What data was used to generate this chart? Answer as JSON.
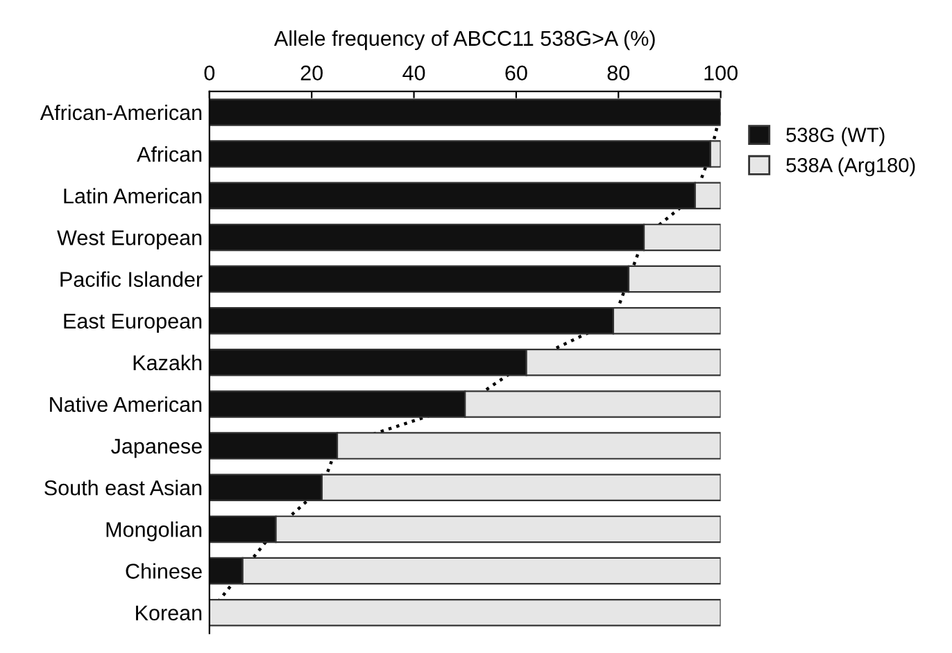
{
  "chart_data": {
    "type": "bar",
    "orientation": "horizontal",
    "stacked": true,
    "xlabel": "Allele frequency of ABCC11 538G>A (%)",
    "categories": [
      "African-American",
      "African",
      "Latin American",
      "West European",
      "Pacific Islander",
      "East European",
      "Kazakh",
      "Native American",
      "Japanese",
      "South east Asian",
      "Mongolian",
      "Chinese",
      "Korean"
    ],
    "series": [
      {
        "name": "538G (WT)",
        "color": "#111111",
        "values": [
          100,
          98,
          95,
          85,
          82,
          79,
          62,
          50,
          25,
          22,
          13,
          6.5,
          0
        ]
      },
      {
        "name": "538A (Arg180)",
        "color": "#e6e6e6",
        "values": [
          0,
          2,
          5,
          15,
          18,
          21,
          38,
          50,
          75,
          78,
          87,
          93.5,
          100
        ]
      },
      {
        "type": "line",
        "color": "#000000",
        "line_style": "dotted",
        "values": [
          100,
          98,
          95,
          85,
          82,
          79,
          62,
          50,
          25,
          22,
          13,
          6.5,
          0
        ]
      }
    ],
    "xlim": [
      0,
      100
    ],
    "xticks": [
      0,
      20,
      40,
      60,
      80,
      100
    ],
    "legend": "top right",
    "grid": false
  }
}
